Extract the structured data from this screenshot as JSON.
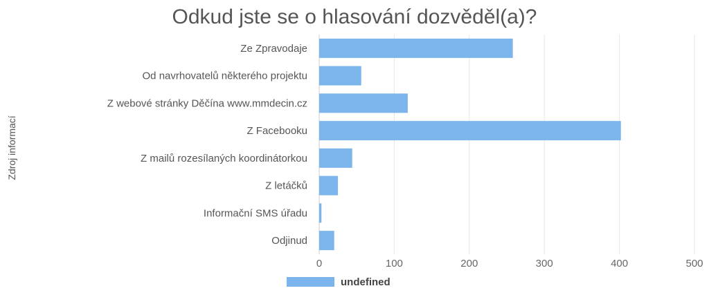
{
  "chart_data": {
    "type": "bar",
    "orientation": "horizontal",
    "title": "Odkud jste se o hlasování dozvěděl(a)?",
    "ylabel": "Zdroj informací",
    "xlabel": "",
    "categories": [
      "Ze Zpravodaje",
      "Od navrhovatelů některého projektu",
      "Z webové stránky Děčína www.mmdecin.cz",
      "Z Facebooku",
      "Z mailů rozesílaných koordinátorkou",
      "Z letáčků",
      "Informační SMS úřadu",
      "Odjinud"
    ],
    "series": [
      {
        "name": "undefined",
        "values": [
          258,
          56,
          118,
          402,
          44,
          25,
          3,
          20
        ],
        "color": "#7cb5ec"
      }
    ],
    "xlim": [
      0,
      500
    ],
    "xticks": [
      0,
      100,
      200,
      300,
      400,
      500
    ],
    "grid": true,
    "legend": "bottom-center"
  }
}
